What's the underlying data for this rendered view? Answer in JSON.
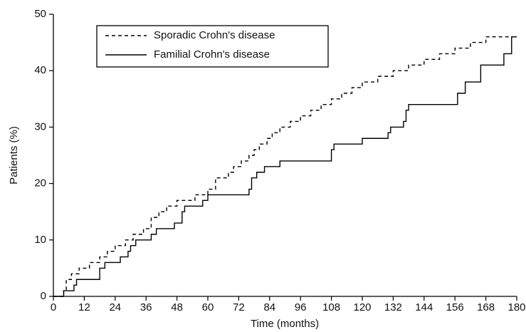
{
  "chart_data": {
    "type": "step-line",
    "x_label": "Time (months)",
    "y_label": "Patients (%)",
    "xlim": [
      0,
      180
    ],
    "xticks": [
      0,
      12,
      24,
      36,
      48,
      60,
      72,
      84,
      96,
      108,
      120,
      132,
      144,
      156,
      168,
      180
    ],
    "ylim": [
      0,
      50
    ],
    "yticks": [
      0,
      10,
      20,
      30,
      40,
      50
    ],
    "legend": "upper-left",
    "grid": false,
    "series": [
      {
        "name": "Sporadic Crohn's disease",
        "color": "#000000",
        "style": "dashed",
        "x": [
          0,
          4,
          5,
          7,
          10,
          14,
          18,
          21,
          24,
          28,
          31,
          35,
          38,
          41,
          44,
          48,
          55,
          60,
          63,
          68,
          70,
          73,
          76,
          78,
          80,
          83,
          85,
          88,
          92,
          96,
          100,
          104,
          108,
          112,
          116,
          120,
          126,
          132,
          138,
          144,
          150,
          156,
          162,
          168,
          180
        ],
        "values": [
          0,
          1,
          3,
          4,
          5,
          6,
          7,
          8,
          9,
          10,
          11,
          12,
          14,
          15,
          16,
          17,
          18,
          19,
          21,
          22,
          23,
          24,
          25,
          26,
          27,
          28,
          29,
          30,
          31,
          32,
          33,
          34,
          35,
          36,
          37,
          38,
          39,
          40,
          41,
          42,
          43,
          44,
          45,
          46,
          46
        ]
      },
      {
        "name": "Familial Crohn's disease",
        "color": "#000000",
        "style": "solid",
        "x": [
          0,
          4,
          8,
          9,
          18,
          20,
          26,
          29,
          30,
          32,
          38,
          40,
          47,
          50,
          51,
          58,
          60,
          76,
          77,
          79,
          82,
          88,
          108,
          109,
          120,
          130,
          131,
          136,
          137,
          138,
          157,
          160,
          166,
          175,
          178,
          180
        ],
        "values": [
          0,
          1,
          2,
          3,
          5,
          6,
          7,
          8,
          9,
          10,
          11,
          12,
          13,
          15,
          16,
          17,
          18,
          19,
          21,
          22,
          23,
          24,
          26,
          27,
          28,
          29,
          30,
          31,
          33,
          34,
          36,
          38,
          41,
          43,
          46,
          46
        ]
      }
    ]
  }
}
